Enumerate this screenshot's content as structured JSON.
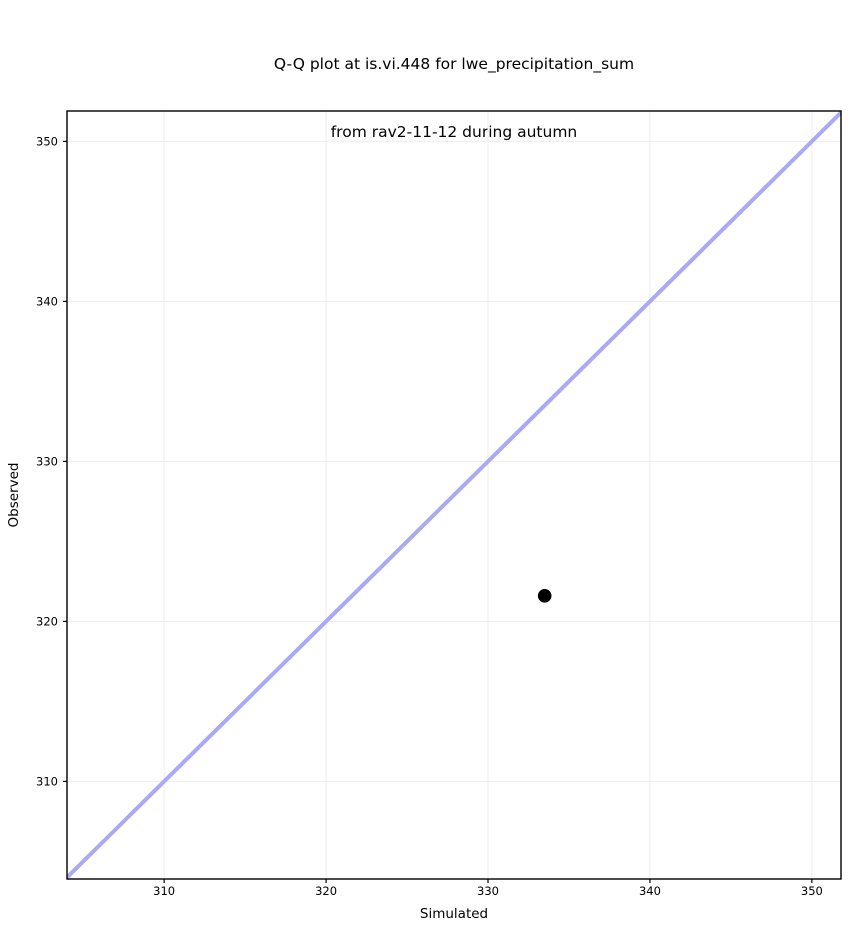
{
  "figure": {
    "background": "#ffffff"
  },
  "chart_data": {
    "type": "scatter",
    "title_lines": [
      "Q-Q plot at is.vi.448 for lwe_precipitation_sum",
      "from rav2-11-12 during autumn"
    ],
    "xlabel": "Simulated",
    "ylabel": "Observed",
    "xlim": [
      304.0,
      351.8
    ],
    "ylim": [
      303.9,
      351.9
    ],
    "xticks": [
      310,
      320,
      330,
      340,
      350
    ],
    "yticks": [
      310,
      320,
      330,
      340,
      350
    ],
    "grid": true,
    "points": [
      {
        "x": 333.5,
        "y": 321.6
      }
    ],
    "identity_line": {
      "slope": 1,
      "intercept": 0,
      "color": "#a9a9f5",
      "width": 4
    },
    "point_style": {
      "color": "#000000",
      "radius": 6.8
    },
    "grid_color": "#ededed",
    "spine_color": "#000000",
    "tick_color": "#000000"
  }
}
